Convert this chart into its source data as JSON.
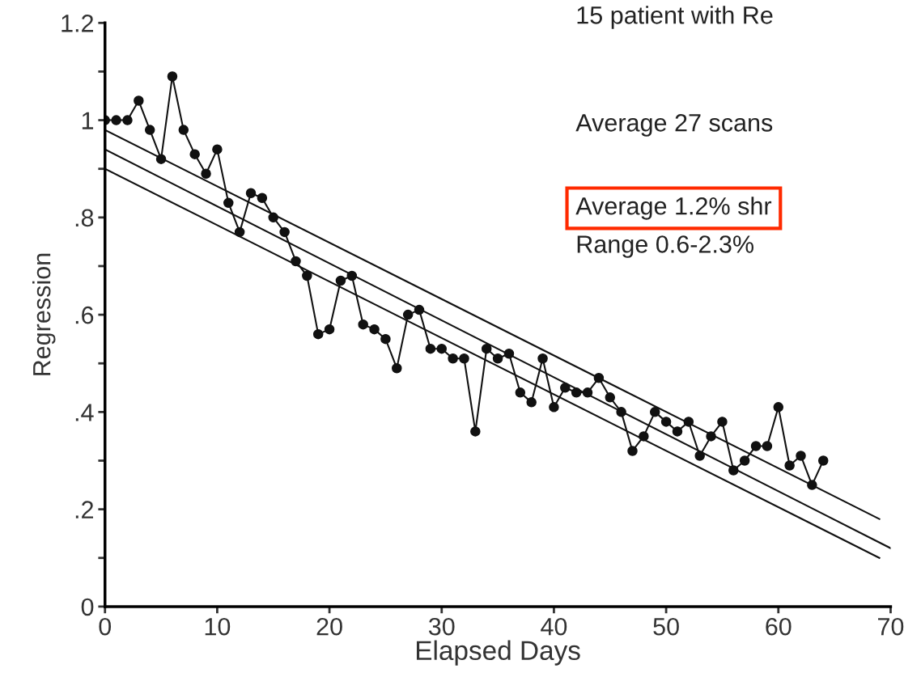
{
  "chart_data": {
    "type": "line",
    "xlabel": "Elapsed Days",
    "ylabel": "Regression",
    "xlim": [
      0,
      70
    ],
    "xticks": [
      0,
      10,
      20,
      30,
      40,
      50,
      60,
      70
    ],
    "ylim": [
      0,
      1.2
    ],
    "yticks": [
      0,
      {
        "value": 0.1,
        "label": null
      },
      {
        "value": 0.2,
        "label": ".2"
      },
      {
        "value": 0.3,
        "label": null
      },
      {
        "value": 0.4,
        "label": ".4"
      },
      {
        "value": 0.5,
        "label": null
      },
      {
        "value": 0.6,
        "label": ".6"
      },
      {
        "value": 0.7,
        "label": null
      },
      {
        "value": 0.8,
        "label": ".8"
      },
      {
        "value": 0.9,
        "label": null
      },
      1,
      {
        "value": 1.1,
        "label": null
      },
      1.2
    ],
    "grid": false,
    "legend": false,
    "annotations": [
      "15 patient with Re",
      "Average 27 scans",
      "Average 1.2% shr",
      "Range 0.6-2.3%"
    ],
    "series": [
      {
        "color": "#111111",
        "marker": "circle",
        "line_style": "solid",
        "x": [
          0,
          1,
          2,
          3,
          4,
          5,
          6,
          7,
          8,
          9,
          10,
          11,
          12,
          13,
          14,
          15,
          16,
          17,
          18,
          19,
          20,
          21,
          22,
          23,
          24,
          25,
          26,
          27,
          28,
          29,
          30,
          31,
          32,
          33,
          34,
          35,
          36,
          37,
          38,
          39,
          40,
          41,
          42,
          43,
          44,
          45,
          46,
          47,
          48,
          49,
          50,
          51,
          52,
          53,
          54,
          55,
          56,
          57,
          58,
          59,
          60,
          61,
          62,
          63,
          64
        ],
        "values": [
          1.0,
          1.0,
          1.0,
          1.04,
          0.98,
          0.92,
          1.09,
          0.98,
          0.93,
          0.89,
          0.94,
          0.83,
          0.77,
          0.85,
          0.84,
          0.8,
          0.77,
          0.71,
          0.68,
          0.56,
          0.57,
          0.67,
          0.68,
          0.58,
          0.57,
          0.55,
          0.49,
          0.6,
          0.61,
          0.53,
          0.53,
          0.51,
          0.51,
          0.36,
          0.53,
          0.51,
          0.52,
          0.44,
          0.42,
          0.51,
          0.41,
          0.45,
          0.44,
          0.44,
          0.47,
          0.43,
          0.4,
          0.32,
          0.35,
          0.4,
          0.38,
          0.36,
          0.38,
          0.31,
          0.35,
          0.38,
          0.28,
          0.3,
          0.33,
          0.33,
          0.41,
          0.29,
          0.31,
          0.25,
          0.3
        ]
      },
      {
        "color": "#111111",
        "marker": "none",
        "line_style": "solid",
        "x": [
          0,
          69
        ],
        "values": [
          0.98,
          0.18
        ]
      },
      {
        "color": "#111111",
        "marker": "none",
        "line_style": "solid",
        "x": [
          0,
          70
        ],
        "values": [
          0.94,
          0.12
        ]
      },
      {
        "color": "#111111",
        "marker": "none",
        "line_style": "solid",
        "x": [
          0,
          69
        ],
        "values": [
          0.9,
          0.1
        ]
      }
    ]
  }
}
